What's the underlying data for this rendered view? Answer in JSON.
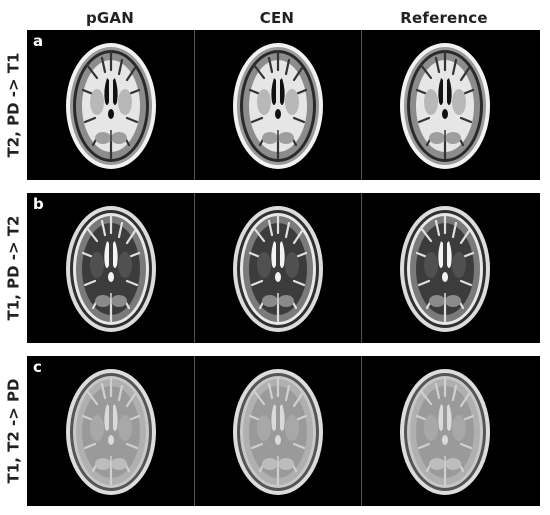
{
  "columns": [
    "pGAN",
    "CEN",
    "Reference"
  ],
  "rows": [
    {
      "tag": "a",
      "label": "T2, PD -> T1",
      "contrast": "T1"
    },
    {
      "tag": "b",
      "label": "T1, PD -> T2",
      "contrast": "T2"
    },
    {
      "tag": "c",
      "label": "T1, T2 -> PD",
      "contrast": "PD"
    }
  ],
  "colors": {
    "background": "#000000",
    "panel_separator": "#555555",
    "label_text": "#222222",
    "tag_text": "#ffffff"
  }
}
